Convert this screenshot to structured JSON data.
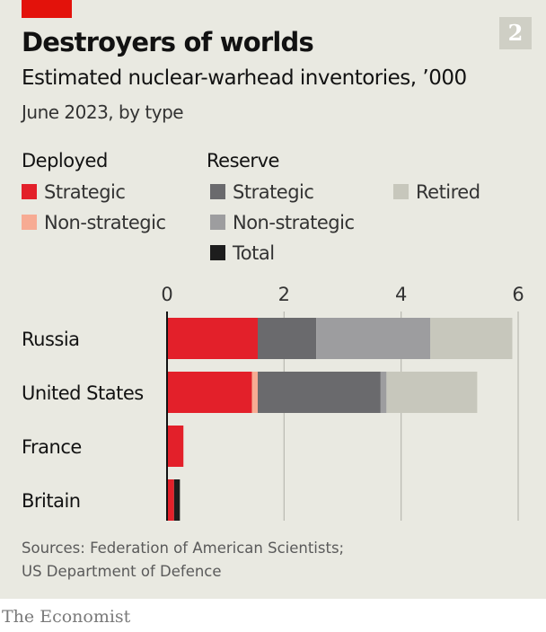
{
  "header": {
    "chart_number": "2",
    "title": "Destroyers of worlds",
    "subtitle": "Estimated nuclear-warhead inventories, ’000",
    "note": "June 2023, by type"
  },
  "legend": {
    "deployed_heading": "Deployed",
    "reserve_heading": "Reserve",
    "items": [
      {
        "label": "Strategic",
        "color": "#e3202a"
      },
      {
        "label": "Non-strategic",
        "color": "#f7ab93"
      },
      {
        "label": "Strategic",
        "color": "#6a6a6d"
      },
      {
        "label": "Non-strategic",
        "color": "#9d9d9f"
      },
      {
        "label": "Total",
        "color": "#1d1d1d"
      },
      {
        "label": "Retired",
        "color": "#c7c7bc"
      }
    ]
  },
  "chart_data": {
    "type": "bar",
    "orientation": "horizontal",
    "stacked": true,
    "title": "Destroyers of worlds",
    "subtitle": "Estimated nuclear-warhead inventories, ’000",
    "categories": [
      "Russia",
      "United States",
      "France",
      "Britain"
    ],
    "xlim": [
      0,
      6
    ],
    "xticks": [
      0,
      2,
      4,
      6
    ],
    "grid": true,
    "series": [
      {
        "name": "Deployed: Strategic",
        "color": "#e3202a",
        "values": [
          1.55,
          1.45,
          0.28,
          0.12
        ]
      },
      {
        "name": "Deployed: Non-strategic",
        "color": "#f7ab93",
        "values": [
          0,
          0.1,
          0,
          0
        ]
      },
      {
        "name": "Reserve: Strategic",
        "color": "#6a6a6d",
        "values": [
          1.0,
          2.1,
          0,
          0
        ]
      },
      {
        "name": "Reserve: Non-strategic",
        "color": "#9d9d9f",
        "values": [
          1.95,
          0.1,
          0,
          0
        ]
      },
      {
        "name": "Reserve: Total",
        "color": "#1d1d1d",
        "values": [
          0,
          0,
          0,
          0.1
        ]
      },
      {
        "name": "Retired",
        "color": "#c7c7bc",
        "values": [
          1.4,
          1.55,
          0,
          0
        ]
      }
    ]
  },
  "sources": {
    "line1": "Sources: Federation of American Scientists;",
    "line2": "US Department of Defence"
  },
  "footer": {
    "logo": "The Economist"
  }
}
